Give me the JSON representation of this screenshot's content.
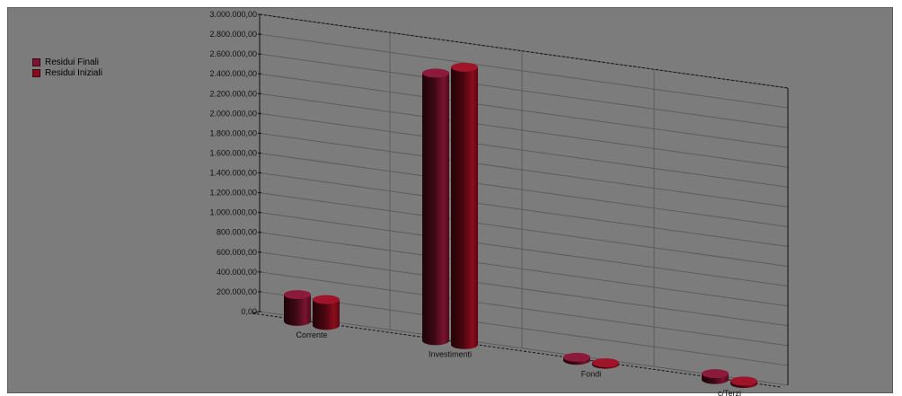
{
  "chart_data": {
    "type": "bar",
    "categories": [
      "Corrente",
      "Investimenti",
      "Fondi",
      "c/Terzi"
    ],
    "series": [
      {
        "name": "Residui Finali",
        "values": [
          270000,
          2700000,
          30000,
          60000
        ]
      },
      {
        "name": "Residui Iniziali",
        "values": [
          260000,
          2800000,
          15000,
          25000
        ]
      }
    ],
    "ylim": [
      0,
      3000000
    ],
    "ticks": [
      "0,00",
      "200.000,00",
      "400.000,00",
      "600.000,00",
      "800.000,00",
      "1.000.000,00",
      "1.200.000,00",
      "1.400.000,00",
      "1.600.000,00",
      "1.800.000,00",
      "2.000.000,00",
      "2.200.000,00",
      "2.400.000,00",
      "2.600.000,00",
      "2.800.000,00",
      "3.000.000,00"
    ],
    "legend_position": "left",
    "grid": true,
    "colors": {
      "series": [
        "#7a1430",
        "#8a0c1c"
      ],
      "background": "#7c7c7c",
      "grid": "#5c5c5c"
    }
  }
}
